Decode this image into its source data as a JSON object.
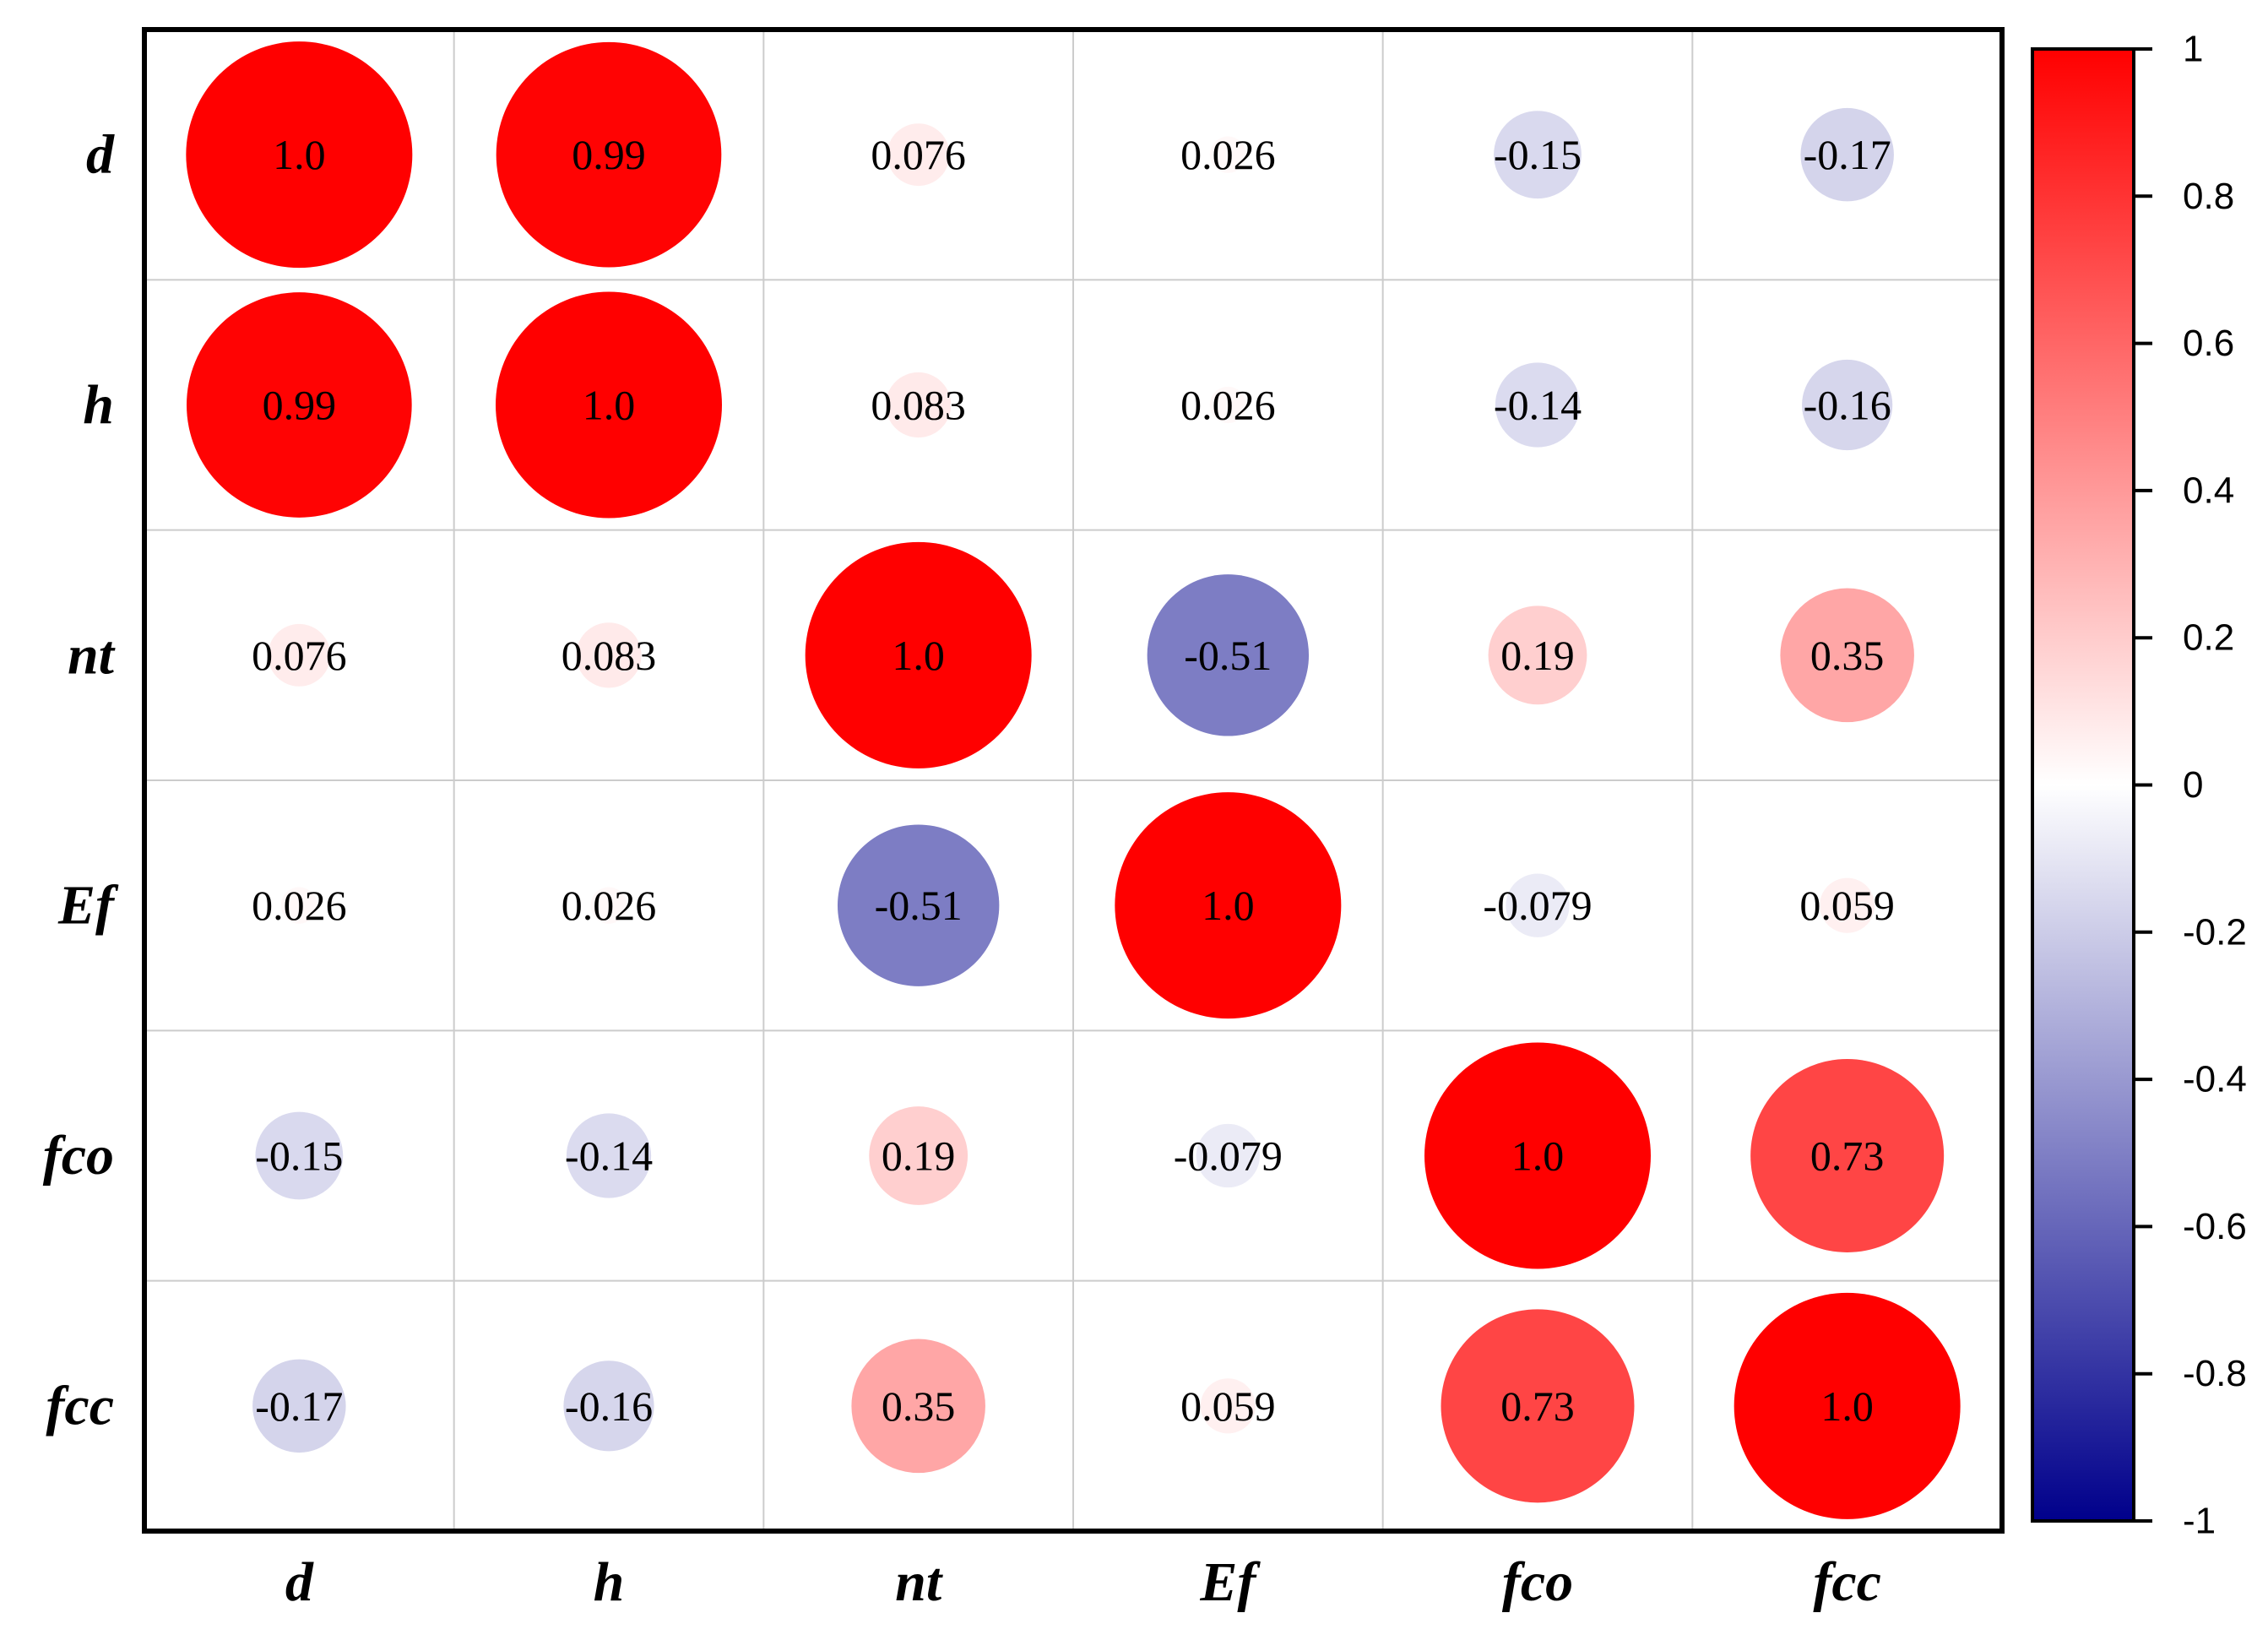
{
  "chart_data": {
    "type": "heatmap",
    "variables": [
      "d",
      "h",
      "nt",
      "Ef",
      "fco",
      "fcc"
    ],
    "matrix": [
      [
        1.0,
        0.99,
        0.076,
        0.026,
        -0.15,
        -0.17
      ],
      [
        0.99,
        1.0,
        0.083,
        0.026,
        -0.14,
        -0.16
      ],
      [
        0.076,
        0.083,
        1.0,
        -0.51,
        0.19,
        0.35
      ],
      [
        0.026,
        0.026,
        -0.51,
        1.0,
        -0.079,
        0.059
      ],
      [
        -0.15,
        -0.14,
        0.19,
        -0.079,
        1.0,
        0.73
      ],
      [
        -0.17,
        -0.16,
        0.35,
        0.059,
        0.73,
        1.0
      ]
    ],
    "labels": [
      [
        "1.0",
        "0.99",
        "0.076",
        "0.026",
        "-0.15",
        "-0.17"
      ],
      [
        "0.99",
        "1.0",
        "0.083",
        "0.026",
        "-0.14",
        "-0.16"
      ],
      [
        "0.076",
        "0.083",
        "1.0",
        "-0.51",
        "0.19",
        "0.35"
      ],
      [
        "0.026",
        "0.026",
        "-0.51",
        "1.0",
        "-0.079",
        "0.059"
      ],
      [
        "-0.15",
        "-0.14",
        "0.19",
        "-0.079",
        "1.0",
        "0.73"
      ],
      [
        "-0.17",
        "-0.16",
        "0.35",
        "0.059",
        "0.73",
        "1.0"
      ]
    ],
    "colorbar": {
      "range": [
        -1,
        1
      ],
      "ticks": [
        "1",
        "0.8",
        "0.6",
        "0.4",
        "0.2",
        "0",
        "-0.2",
        "-0.4",
        "-0.6",
        "-0.8",
        "-1"
      ],
      "tick_values": [
        1,
        0.8,
        0.6,
        0.4,
        0.2,
        0,
        -0.2,
        -0.4,
        -0.6,
        -0.8,
        -1
      ],
      "colors": {
        "negative": "#00008b",
        "zero": "#ffffff",
        "positive": "#ff0000"
      }
    },
    "title": "",
    "grid": true,
    "marker": "circle sized by |r|"
  }
}
